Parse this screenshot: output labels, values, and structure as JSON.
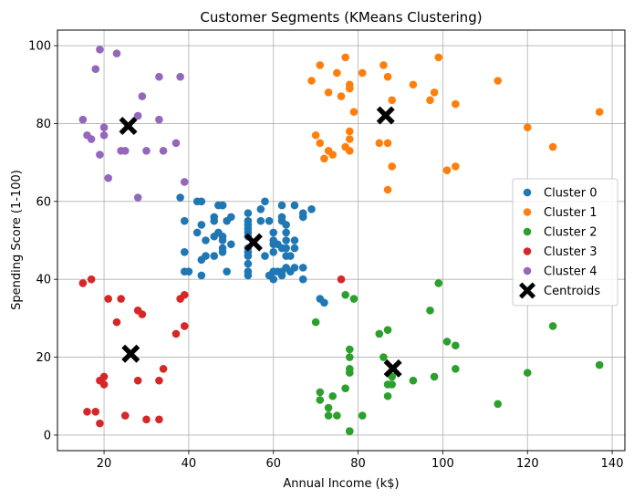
{
  "chart_data": {
    "type": "scatter",
    "title": "Customer Segments (KMeans Clustering)",
    "xlabel": "Annual Income (k$)",
    "ylabel": "Spending Score (1-100)",
    "xlim": [
      9,
      143
    ],
    "ylim": [
      -4,
      104
    ],
    "x_ticks": [
      20,
      40,
      60,
      80,
      100,
      120,
      140
    ],
    "y_ticks": [
      0,
      20,
      40,
      60,
      80,
      100
    ],
    "grid": true,
    "legend_position": "center-right",
    "series": [
      {
        "name": "Cluster 0",
        "color": "#1f77b4",
        "points": [
          [
            38,
            61
          ],
          [
            39,
            55
          ],
          [
            39,
            47
          ],
          [
            39,
            42
          ],
          [
            40,
            42
          ],
          [
            42,
            52
          ],
          [
            42,
            60
          ],
          [
            43,
            54
          ],
          [
            43,
            60
          ],
          [
            43,
            45
          ],
          [
            43,
            41
          ],
          [
            44,
            50
          ],
          [
            44,
            46
          ],
          [
            46,
            51
          ],
          [
            46,
            46
          ],
          [
            46,
            56
          ],
          [
            46,
            55
          ],
          [
            47,
            52
          ],
          [
            47,
            59
          ],
          [
            48,
            51
          ],
          [
            48,
            59
          ],
          [
            48,
            50
          ],
          [
            48,
            48
          ],
          [
            48,
            59
          ],
          [
            48,
            47
          ],
          [
            49,
            55
          ],
          [
            49,
            42
          ],
          [
            50,
            49
          ],
          [
            50,
            56
          ],
          [
            54,
            47
          ],
          [
            54,
            54
          ],
          [
            54,
            53
          ],
          [
            54,
            48
          ],
          [
            54,
            52
          ],
          [
            54,
            42
          ],
          [
            54,
            51
          ],
          [
            54,
            55
          ],
          [
            54,
            41
          ],
          [
            54,
            44
          ],
          [
            54,
            57
          ],
          [
            54,
            46
          ],
          [
            57,
            58
          ],
          [
            57,
            55
          ],
          [
            58,
            60
          ],
          [
            58,
            46
          ],
          [
            59,
            55
          ],
          [
            59,
            41
          ],
          [
            60,
            49
          ],
          [
            60,
            40
          ],
          [
            60,
            42
          ],
          [
            60,
            52
          ],
          [
            60,
            47
          ],
          [
            60,
            50
          ],
          [
            61,
            42
          ],
          [
            61,
            49
          ],
          [
            62,
            41
          ],
          [
            62,
            48
          ],
          [
            62,
            59
          ],
          [
            62,
            55
          ],
          [
            62,
            56
          ],
          [
            62,
            42
          ],
          [
            63,
            50
          ],
          [
            63,
            46
          ],
          [
            63,
            43
          ],
          [
            63,
            48
          ],
          [
            63,
            52
          ],
          [
            63,
            54
          ],
          [
            64,
            42
          ],
          [
            64,
            46
          ],
          [
            65,
            48
          ],
          [
            65,
            50
          ],
          [
            65,
            43
          ],
          [
            65,
            59
          ],
          [
            67,
            43
          ],
          [
            67,
            57
          ],
          [
            67,
            56
          ],
          [
            67,
            40
          ],
          [
            69,
            58
          ],
          [
            71,
            35
          ],
          [
            72,
            34
          ]
        ]
      },
      {
        "name": "Cluster 1",
        "color": "#ff7f0e",
        "points": [
          [
            69,
            91
          ],
          [
            70,
            77
          ],
          [
            71,
            95
          ],
          [
            71,
            75
          ],
          [
            72,
            71
          ],
          [
            73,
            88
          ],
          [
            73,
            73
          ],
          [
            74,
            72
          ],
          [
            75,
            93
          ],
          [
            76,
            87
          ],
          [
            77,
            97
          ],
          [
            77,
            74
          ],
          [
            78,
            90
          ],
          [
            78,
            76
          ],
          [
            78,
            89
          ],
          [
            78,
            78
          ],
          [
            78,
            73
          ],
          [
            79,
            83
          ],
          [
            81,
            93
          ],
          [
            85,
            75
          ],
          [
            86,
            95
          ],
          [
            87,
            63
          ],
          [
            87,
            75
          ],
          [
            87,
            92
          ],
          [
            88,
            86
          ],
          [
            88,
            69
          ],
          [
            93,
            90
          ],
          [
            97,
            86
          ],
          [
            98,
            88
          ],
          [
            99,
            97
          ],
          [
            101,
            68
          ],
          [
            103,
            85
          ],
          [
            103,
            69
          ],
          [
            113,
            91
          ],
          [
            120,
            79
          ],
          [
            126,
            74
          ],
          [
            137,
            83
          ]
        ]
      },
      {
        "name": "Cluster 2",
        "color": "#2ca02c",
        "points": [
          [
            70,
            29
          ],
          [
            71,
            11
          ],
          [
            71,
            9
          ],
          [
            73,
            5
          ],
          [
            73,
            7
          ],
          [
            74,
            10
          ],
          [
            75,
            5
          ],
          [
            77,
            12
          ],
          [
            77,
            36
          ],
          [
            78,
            22
          ],
          [
            78,
            17
          ],
          [
            78,
            20
          ],
          [
            78,
            16
          ],
          [
            78,
            1
          ],
          [
            78,
            1
          ],
          [
            79,
            35
          ],
          [
            81,
            5
          ],
          [
            85,
            26
          ],
          [
            86,
            20
          ],
          [
            87,
            27
          ],
          [
            87,
            13
          ],
          [
            87,
            10
          ],
          [
            88,
            13
          ],
          [
            88,
            15
          ],
          [
            93,
            14
          ],
          [
            97,
            32
          ],
          [
            98,
            15
          ],
          [
            99,
            39
          ],
          [
            101,
            24
          ],
          [
            103,
            17
          ],
          [
            103,
            23
          ],
          [
            113,
            8
          ],
          [
            120,
            16
          ],
          [
            126,
            28
          ],
          [
            137,
            18
          ]
        ]
      },
      {
        "name": "Cluster 3",
        "color": "#d62728",
        "points": [
          [
            15,
            39
          ],
          [
            16,
            6
          ],
          [
            17,
            40
          ],
          [
            18,
            6
          ],
          [
            19,
            3
          ],
          [
            19,
            14
          ],
          [
            20,
            15
          ],
          [
            20,
            13
          ],
          [
            21,
            35
          ],
          [
            23,
            29
          ],
          [
            24,
            35
          ],
          [
            25,
            5
          ],
          [
            28,
            14
          ],
          [
            28,
            32
          ],
          [
            29,
            31
          ],
          [
            30,
            4
          ],
          [
            33,
            4
          ],
          [
            33,
            14
          ],
          [
            34,
            17
          ],
          [
            37,
            26
          ],
          [
            38,
            35
          ],
          [
            39,
            36
          ],
          [
            39,
            28
          ],
          [
            76,
            40
          ]
        ]
      },
      {
        "name": "Cluster 4",
        "color": "#9467bd",
        "points": [
          [
            15,
            81
          ],
          [
            16,
            77
          ],
          [
            17,
            76
          ],
          [
            18,
            94
          ],
          [
            19,
            72
          ],
          [
            19,
            99
          ],
          [
            20,
            77
          ],
          [
            20,
            79
          ],
          [
            21,
            66
          ],
          [
            23,
            98
          ],
          [
            24,
            73
          ],
          [
            25,
            73
          ],
          [
            28,
            82
          ],
          [
            28,
            61
          ],
          [
            29,
            87
          ],
          [
            30,
            73
          ],
          [
            33,
            81
          ],
          [
            33,
            92
          ],
          [
            34,
            73
          ],
          [
            37,
            75
          ],
          [
            38,
            92
          ],
          [
            39,
            65
          ]
        ]
      },
      {
        "name": "Centroids",
        "color": "#000000",
        "marker": "X",
        "points": [
          [
            55.3,
            49.5
          ],
          [
            86.5,
            82.1
          ],
          [
            88.2,
            17.1
          ],
          [
            26.3,
            20.9
          ],
          [
            25.7,
            79.4
          ]
        ]
      }
    ]
  }
}
